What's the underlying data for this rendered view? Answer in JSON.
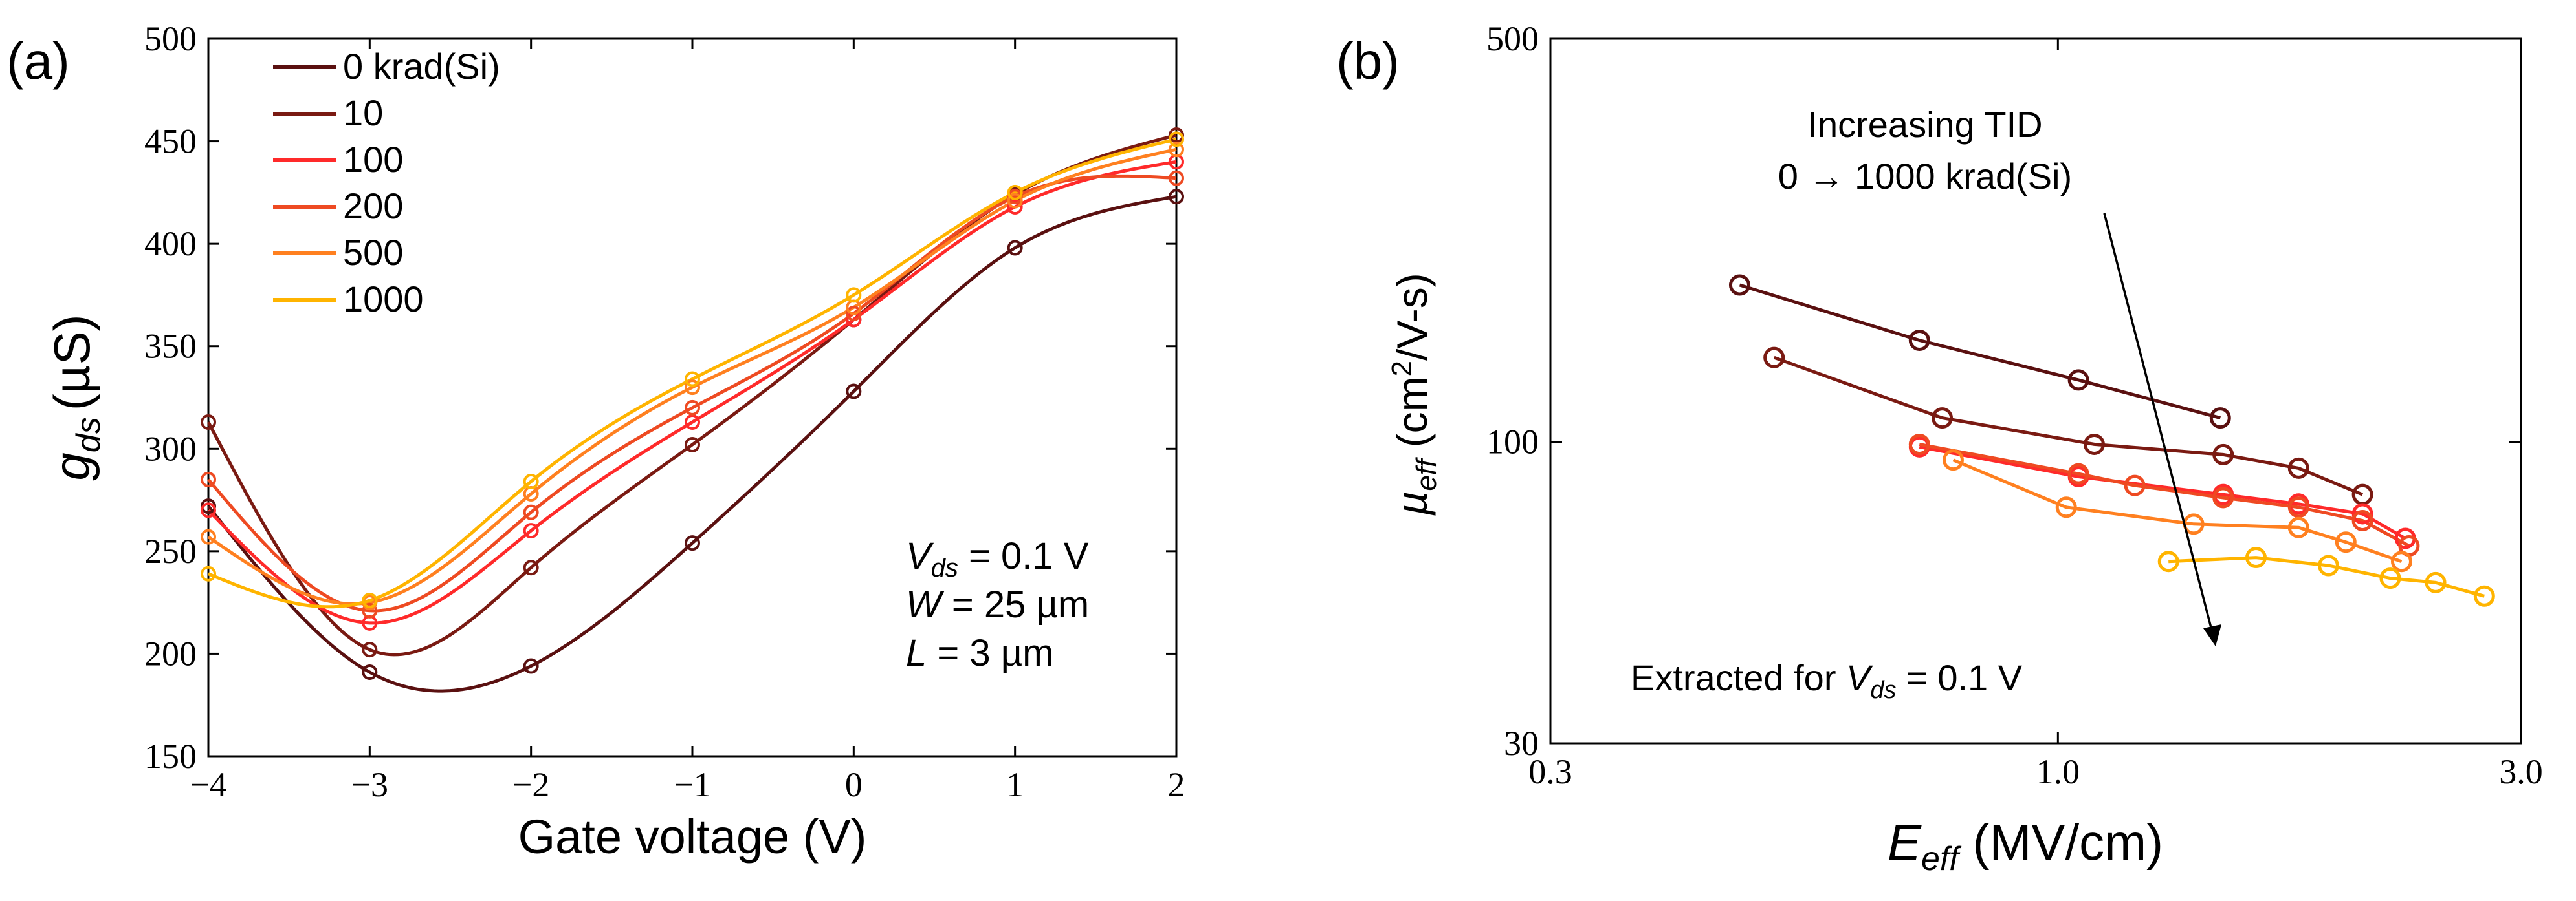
{
  "panel_a": {
    "label": "(a)"
  },
  "panel_b": {
    "label": "(b)"
  },
  "colors": [
    "#5a1010",
    "#7a1a12",
    "#ff2a2a",
    "#ee4a22",
    "#ff8020",
    "#ffb400"
  ],
  "chart_data": [
    {
      "type": "line",
      "panel": "(a)",
      "xlabel": "Gate voltage (V)",
      "ylabel": {
        "main": "g",
        "sub": "ds",
        "unit": "(µS)"
      },
      "xlim": [
        -4,
        2
      ],
      "ylim": [
        150,
        500
      ],
      "xticks": [
        "−4",
        "−3",
        "−2",
        "−1",
        "0",
        "1",
        "2"
      ],
      "yticks": [
        "150",
        "200",
        "250",
        "300",
        "350",
        "400",
        "450",
        "500"
      ],
      "legend": {
        "position": "top-left",
        "labels": [
          "0 krad(Si)",
          "10",
          "100",
          "200",
          "500",
          "1000"
        ]
      },
      "annotation": {
        "vds_var": "V",
        "vds_sub": "ds",
        "vds_val": " = 0.1 V",
        "w_var": "W",
        "w_val": " = 25 µm",
        "l_var": "L",
        "l_val": " = 3 µm"
      },
      "x": [
        -4,
        -3,
        -2,
        -1,
        0,
        1,
        2
      ],
      "series": [
        {
          "name": "0 krad(Si)",
          "values": [
            272,
            191,
            194,
            254,
            328,
            398,
            423
          ]
        },
        {
          "name": "10",
          "values": [
            313,
            202,
            242,
            302,
            363,
            424,
            453
          ]
        },
        {
          "name": "100",
          "values": [
            270,
            215,
            260,
            313,
            363,
            418,
            440
          ]
        },
        {
          "name": "200",
          "values": [
            285,
            221,
            269,
            320,
            366,
            423,
            432
          ]
        },
        {
          "name": "500",
          "values": [
            257,
            225,
            278,
            330,
            369,
            421,
            446
          ]
        },
        {
          "name": "1000",
          "values": [
            239,
            226,
            284,
            334,
            375,
            425,
            451
          ]
        }
      ]
    },
    {
      "type": "line",
      "panel": "(b)",
      "xlabel": {
        "main": "E",
        "sub": "eff",
        "unit": " (MV/cm)"
      },
      "ylabel": {
        "main": "µ",
        "sub": "eff",
        "unit": " (cm",
        "sup": "2",
        "unit2": "/V-s)"
      },
      "xscale": "log",
      "yscale": "log",
      "xlim": [
        0.3,
        3.0
      ],
      "ylim": [
        30,
        500
      ],
      "xticks": [
        "0.3",
        "1.0",
        "3.0"
      ],
      "yticks": [
        "30",
        "100",
        "500"
      ],
      "annotation_trend": {
        "line1": "Increasing TID",
        "line2": "0 → 1000 krad(Si)"
      },
      "annotation_extract": {
        "text": "Extracted for ",
        "var": "V",
        "sub": "ds",
        "val": " = 0.1 V"
      },
      "series": [
        {
          "name": "0 krad(Si)",
          "x": [
            0.47,
            0.72,
            1.05,
            1.47
          ],
          "y": [
            187,
            150,
            128,
            110
          ]
        },
        {
          "name": "10",
          "x": [
            0.51,
            0.76,
            1.09,
            1.48,
            1.77,
            2.06
          ],
          "y": [
            140,
            110,
            99,
            95,
            90,
            81
          ]
        },
        {
          "name": "100",
          "x": [
            0.72,
            1.05,
            1.48,
            1.77,
            2.06,
            2.28
          ],
          "y": [
            98,
            87,
            81,
            78,
            75,
            68
          ]
        },
        {
          "name": "200",
          "x": [
            0.72,
            1.05,
            1.2,
            1.48,
            1.77,
            2.06,
            2.3
          ],
          "y": [
            99,
            88,
            84,
            80,
            77,
            73,
            66
          ]
        },
        {
          "name": "500",
          "x": [
            0.78,
            1.02,
            1.38,
            1.77,
            1.98,
            2.26
          ],
          "y": [
            93,
            77,
            72,
            71,
            67,
            62
          ]
        },
        {
          "name": "1000",
          "x": [
            1.3,
            1.6,
            1.9,
            2.2,
            2.45,
            2.75
          ],
          "y": [
            62,
            63,
            61,
            58,
            57,
            54
          ]
        }
      ]
    }
  ]
}
